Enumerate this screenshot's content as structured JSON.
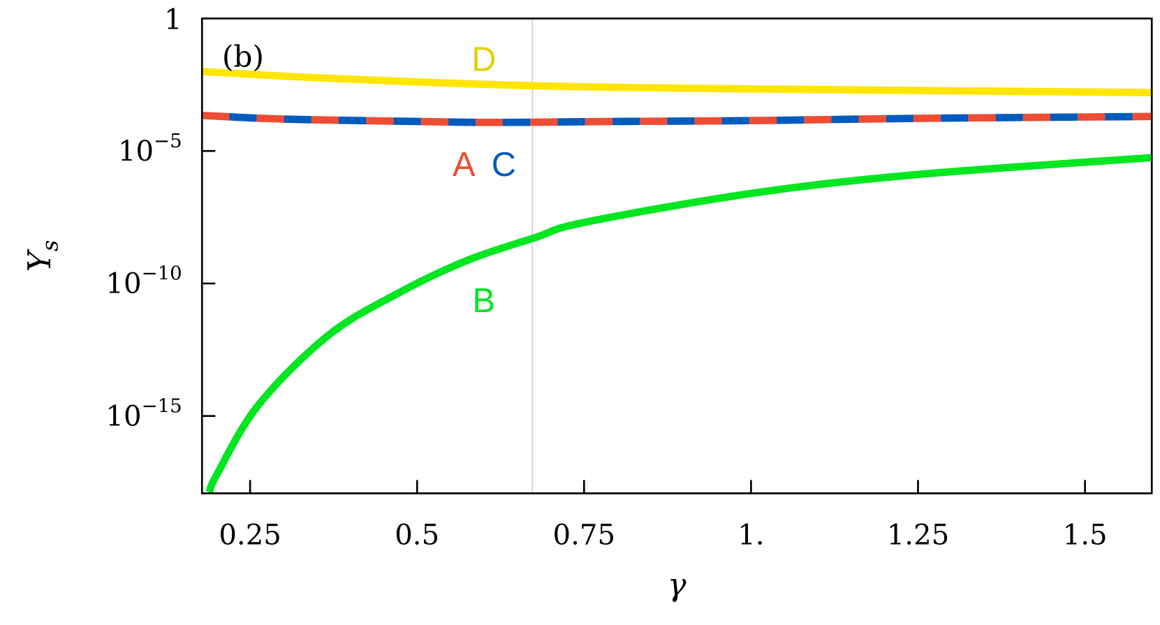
{
  "chart_data": {
    "type": "line",
    "panel_label": "(b)",
    "xlabel": "γ",
    "ylabel": {
      "main": "Y",
      "sub": "s"
    },
    "xlim": [
      0.178,
      1.6
    ],
    "ylim": [
      1.2e-18,
      1
    ],
    "yscale": "log",
    "grid": false,
    "x_ticks": [
      {
        "value": 0.25,
        "label": "0.25"
      },
      {
        "value": 0.5,
        "label": "0.5"
      },
      {
        "value": 0.75,
        "label": "0.75"
      },
      {
        "value": 1.0,
        "label": "1."
      },
      {
        "value": 1.25,
        "label": "1.25"
      },
      {
        "value": 1.5,
        "label": "1.5"
      }
    ],
    "y_ticks": [
      {
        "value": 1,
        "base": "1",
        "exp": ""
      },
      {
        "value": 1e-05,
        "base": "10",
        "exp": "−5"
      },
      {
        "value": 1e-10,
        "base": "10",
        "exp": "−10"
      },
      {
        "value": 1e-15,
        "base": "10",
        "exp": "−15"
      }
    ],
    "vertical_line": {
      "x": 0.6726,
      "color": "#cccccc"
    },
    "series": [
      {
        "name": "D",
        "color": "#ffe500",
        "label_color": "#e6cf00",
        "style": "solid",
        "x": [
          0.178,
          0.37,
          0.673,
          1.0,
          1.6
        ],
        "y": [
          0.01,
          0.0055,
          0.0029,
          0.0022,
          0.0016
        ]
      },
      {
        "name": "A",
        "color": "#ee4c33",
        "label_color": "#ee4c33",
        "style": "dashed",
        "x": [
          0.178,
          0.3,
          0.5,
          0.62,
          0.8,
          1.0,
          1.25,
          1.6
        ],
        "y": [
          0.00022,
          0.00016,
          0.00013,
          0.00012,
          0.00013,
          0.00014,
          0.00017,
          0.0002
        ]
      },
      {
        "name": "C",
        "color": "#005bbf",
        "label_color": "#005bbf",
        "style": "dashed-offset",
        "x": [
          0.178,
          0.3,
          0.5,
          0.62,
          0.8,
          1.0,
          1.25,
          1.6
        ],
        "y": [
          0.00022,
          0.00016,
          0.00013,
          0.00012,
          0.00013,
          0.00014,
          0.00017,
          0.0002
        ]
      },
      {
        "name": "B",
        "color": "#00e620",
        "label_color": "#00e620",
        "style": "solid",
        "x": [
          0.189,
          0.2,
          0.262,
          0.367,
          0.471,
          0.575,
          0.677,
          0.75,
          1.0,
          1.25,
          1.6
        ],
        "y": [
          1.3e-18,
          6e-18,
          2.5e-15,
          1.1e-12,
          4.2e-11,
          7.4e-10,
          5.4e-09,
          2e-08,
          2.5e-07,
          1.3e-06,
          5.6e-06
        ]
      }
    ]
  }
}
